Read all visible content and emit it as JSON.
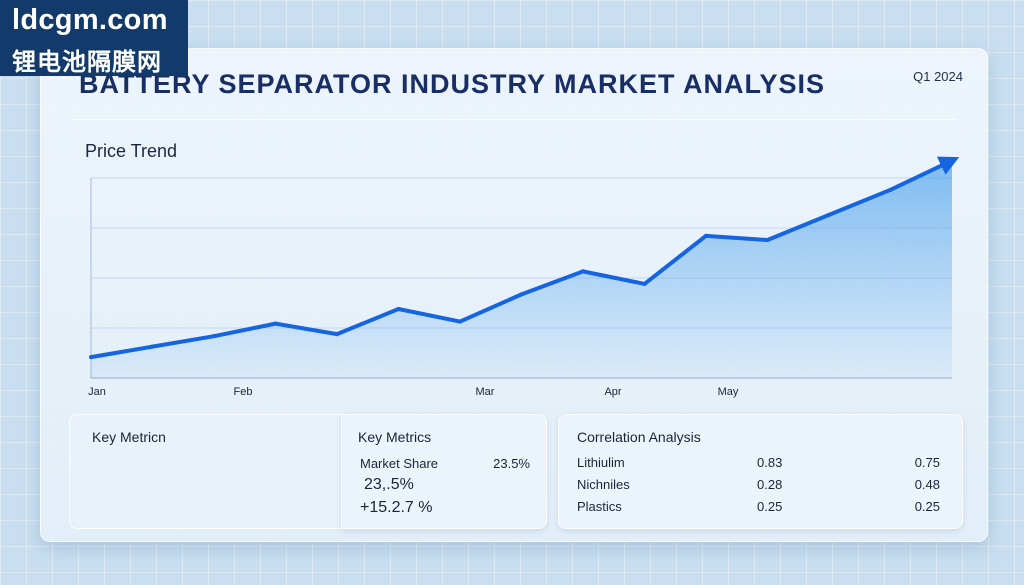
{
  "watermark": {
    "domain": "ldcgm.com",
    "chinese": "锂电池隔膜网"
  },
  "header": {
    "title": "BATTERY SEPARATOR INDUSTRY MARKET ANALYSIS",
    "period": "Q1 2024"
  },
  "price_trend": {
    "label": "Price Trend"
  },
  "chart_data": {
    "type": "line",
    "categories": [
      "Jan",
      "Feb",
      "Mar",
      "Apr",
      "May"
    ],
    "x": [
      0,
      1,
      2,
      3,
      4,
      5,
      6,
      7,
      8,
      9,
      10,
      11,
      12,
      13,
      14
    ],
    "values": [
      10,
      15,
      20,
      26,
      21,
      33,
      27,
      40,
      51,
      45,
      68,
      66,
      78,
      90,
      104
    ],
    "xlabel": "",
    "ylabel": "",
    "ylim": [
      0,
      110
    ],
    "grid": "horizontal",
    "area_fill": true,
    "arrowhead_at_end": true,
    "line_color": "#1565e0",
    "fill_color": "#5aa9ee"
  },
  "metrics_left": {
    "title": "Key Metricn"
  },
  "metrics_right": {
    "title": "Key Metrics",
    "rows": [
      {
        "label": "Market Share",
        "value": "23.5%"
      }
    ],
    "big_value": "23,.5%",
    "change": "+15.2.7 %"
  },
  "correlation": {
    "title": "Correlation Analysis",
    "rows": [
      {
        "name": "Lithiulim",
        "v1": "0.83",
        "v2": "0.75"
      },
      {
        "name": "Nichniles",
        "v1": "0.28",
        "v2": "0.48"
      },
      {
        "name": "Plastics",
        "v1": "0.25",
        "v2": "0.25"
      }
    ]
  },
  "colors": {
    "title": "#1a2e66",
    "watermark_bg": "#123a6b",
    "accent": "#1565e0"
  }
}
